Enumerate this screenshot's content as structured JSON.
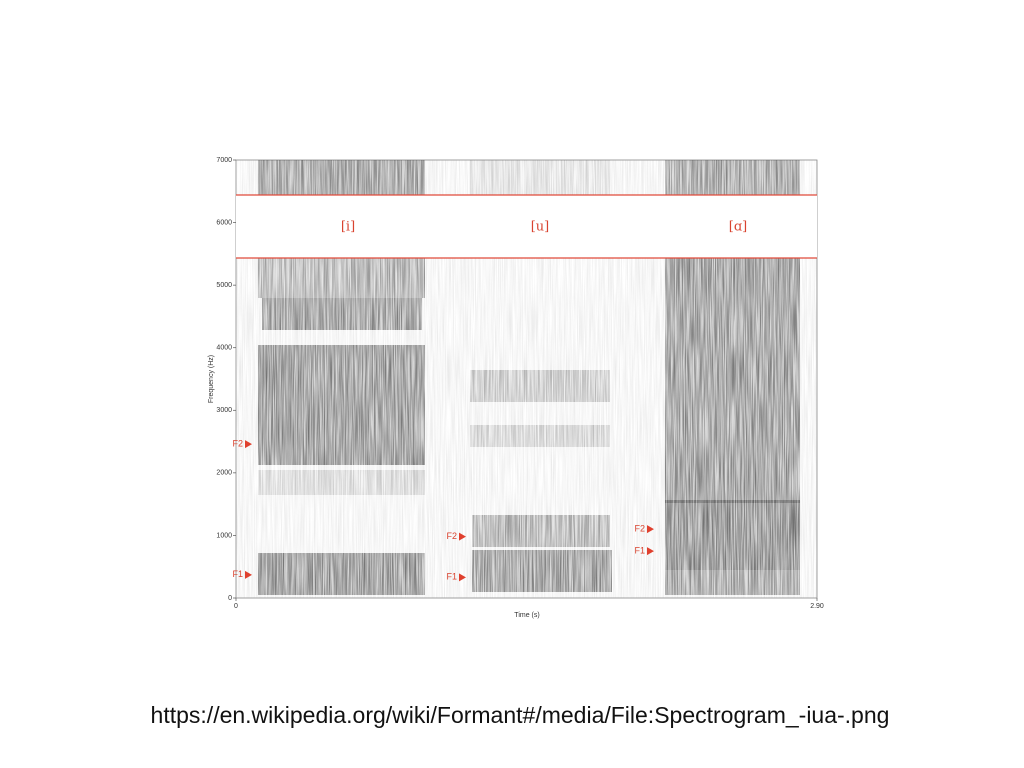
{
  "figure": {
    "y_axis_label": "Frequency (Hz)",
    "x_axis_label": "Time (s)",
    "ylim": [
      0,
      7000
    ],
    "yticks": [
      0,
      1000,
      2000,
      3000,
      4000,
      5000,
      6000,
      7000
    ],
    "xlim": [
      0,
      2.9
    ],
    "xticks": [
      0,
      {
        "value": 2.9,
        "label": "2.90"
      }
    ],
    "vowels": [
      "[i]",
      "[u]",
      "[ɑ]"
    ],
    "formants": [
      {
        "label": "F2",
        "frequency": 2460
      },
      {
        "label": "F1",
        "frequency": 370
      },
      {
        "label": "F2",
        "frequency": 980
      },
      {
        "label": "F1",
        "frequency": 330
      },
      {
        "label": "F2",
        "frequency": 1100
      },
      {
        "label": "F1",
        "frequency": 750
      }
    ]
  },
  "caption": "https://en.wikipedia.org/wiki/Formant#/media/File:Spectrogram_-iua-.png"
}
